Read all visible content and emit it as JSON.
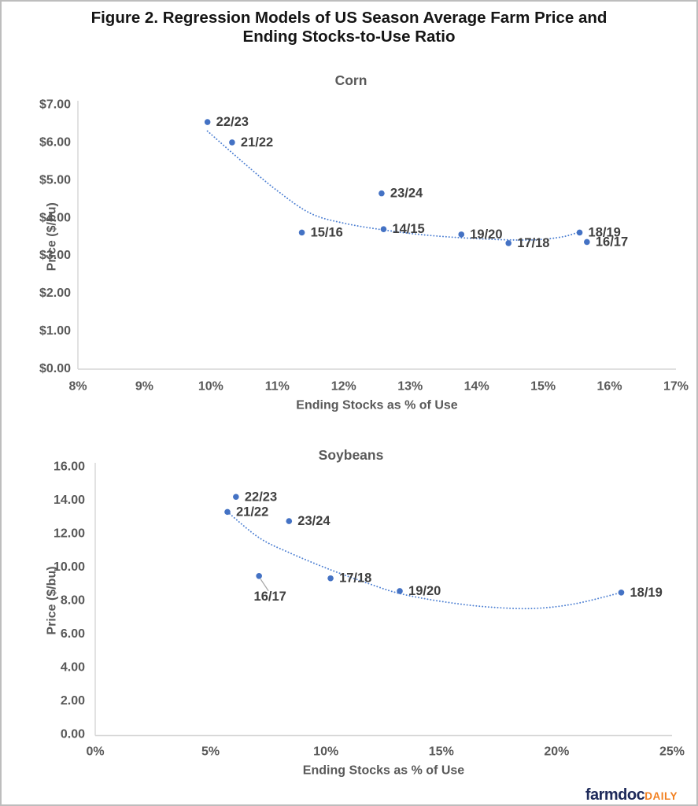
{
  "figure": {
    "title_line1": "Figure 2. Regression Models of US Season Average Farm Price and",
    "title_line2": "Ending Stocks-to-Use Ratio"
  },
  "footer": {
    "brand_primary": "farmdoc",
    "brand_secondary": "DAILY"
  },
  "colors": {
    "point": "#4472c4",
    "trendline": "#4f81d3",
    "point_label": "#3f3f3f",
    "tick_label": "#595959",
    "axis_title": "#595959",
    "chart_title": "#595959",
    "axis_line": "#d6d6d6",
    "leader_line": "#a6a6a6"
  },
  "chart_data": [
    {
      "type": "scatter",
      "title": "Corn",
      "xlabel": "Ending Stocks as % of Use",
      "ylabel": "Price ($/bu)",
      "xlim": [
        8,
        17
      ],
      "ylim": [
        0,
        7
      ],
      "x_tick_values": [
        8,
        9,
        10,
        11,
        12,
        13,
        14,
        15,
        16,
        17
      ],
      "x_tick_labels": [
        "8%",
        "9%",
        "10%",
        "11%",
        "12%",
        "13%",
        "14%",
        "15%",
        "16%",
        "17%"
      ],
      "y_tick_values": [
        7,
        6,
        5,
        4,
        3,
        2,
        1,
        0
      ],
      "y_tick_labels": [
        "$7.00",
        "$6.00",
        "$5.00",
        "$4.00",
        "$3.00",
        "$2.00",
        "$1.00",
        "$0.00"
      ],
      "grid": false,
      "legend": "none",
      "points": [
        {
          "label": "22/23",
          "x": 9.95,
          "y": 6.54,
          "label_pos": "right"
        },
        {
          "label": "21/22",
          "x": 10.32,
          "y": 6.0,
          "label_pos": "right"
        },
        {
          "label": "23/24",
          "x": 12.57,
          "y": 4.65,
          "label_pos": "right"
        },
        {
          "label": "15/16",
          "x": 11.37,
          "y": 3.61,
          "label_pos": "right"
        },
        {
          "label": "14/15",
          "x": 12.6,
          "y": 3.7,
          "label_pos": "right"
        },
        {
          "label": "19/20",
          "x": 13.77,
          "y": 3.56,
          "label_pos": "right"
        },
        {
          "label": "17/18",
          "x": 14.48,
          "y": 3.33,
          "label_pos": "right"
        },
        {
          "label": "18/19",
          "x": 15.55,
          "y": 3.61,
          "label_pos": "right"
        },
        {
          "label": "16/17",
          "x": 15.66,
          "y": 3.36,
          "label_pos": "right"
        }
      ],
      "trendline": [
        [
          9.95,
          6.3
        ],
        [
          10.5,
          5.45
        ],
        [
          11.0,
          4.72
        ],
        [
          11.5,
          4.12
        ],
        [
          12.0,
          3.86
        ],
        [
          12.6,
          3.68
        ],
        [
          13.2,
          3.55
        ],
        [
          13.8,
          3.47
        ],
        [
          14.4,
          3.42
        ],
        [
          14.9,
          3.42
        ],
        [
          15.3,
          3.5
        ],
        [
          15.55,
          3.63
        ]
      ]
    },
    {
      "type": "scatter",
      "title": "Soybeans",
      "xlabel": "Ending Stocks as % of Use",
      "ylabel": "Price ($/bu)",
      "xlim": [
        0,
        25
      ],
      "ylim": [
        0,
        16
      ],
      "x_tick_values": [
        0,
        5,
        10,
        15,
        20,
        25
      ],
      "x_tick_labels": [
        "0%",
        "5%",
        "10%",
        "15%",
        "20%",
        "25%"
      ],
      "y_tick_values": [
        16,
        14,
        12,
        10,
        8,
        6,
        4,
        2,
        0
      ],
      "y_tick_labels": [
        "16.00",
        "14.00",
        "12.00",
        "10.00",
        "8.00",
        "6.00",
        "4.00",
        "2.00",
        "0.00"
      ],
      "grid": false,
      "legend": "none",
      "points": [
        {
          "label": "22/23",
          "x": 6.1,
          "y": 14.2,
          "label_pos": "right"
        },
        {
          "label": "21/22",
          "x": 5.73,
          "y": 13.3,
          "label_pos": "right"
        },
        {
          "label": "23/24",
          "x": 8.4,
          "y": 12.75,
          "label_pos": "right"
        },
        {
          "label": "16/17",
          "x": 7.1,
          "y": 9.47,
          "label_pos": "below"
        },
        {
          "label": "17/18",
          "x": 10.2,
          "y": 9.33,
          "label_pos": "right"
        },
        {
          "label": "19/20",
          "x": 13.2,
          "y": 8.57,
          "label_pos": "right"
        },
        {
          "label": "18/19",
          "x": 22.8,
          "y": 8.48,
          "label_pos": "right"
        }
      ],
      "trendline": [
        [
          5.73,
          13.3
        ],
        [
          7.1,
          11.76
        ],
        [
          8.4,
          10.87
        ],
        [
          10.2,
          9.84
        ],
        [
          11.9,
          8.99
        ],
        [
          13.2,
          8.42
        ],
        [
          15.0,
          7.95
        ],
        [
          17.0,
          7.62
        ],
        [
          19.0,
          7.53
        ],
        [
          20.8,
          7.81
        ],
        [
          22.8,
          8.48
        ]
      ]
    }
  ]
}
